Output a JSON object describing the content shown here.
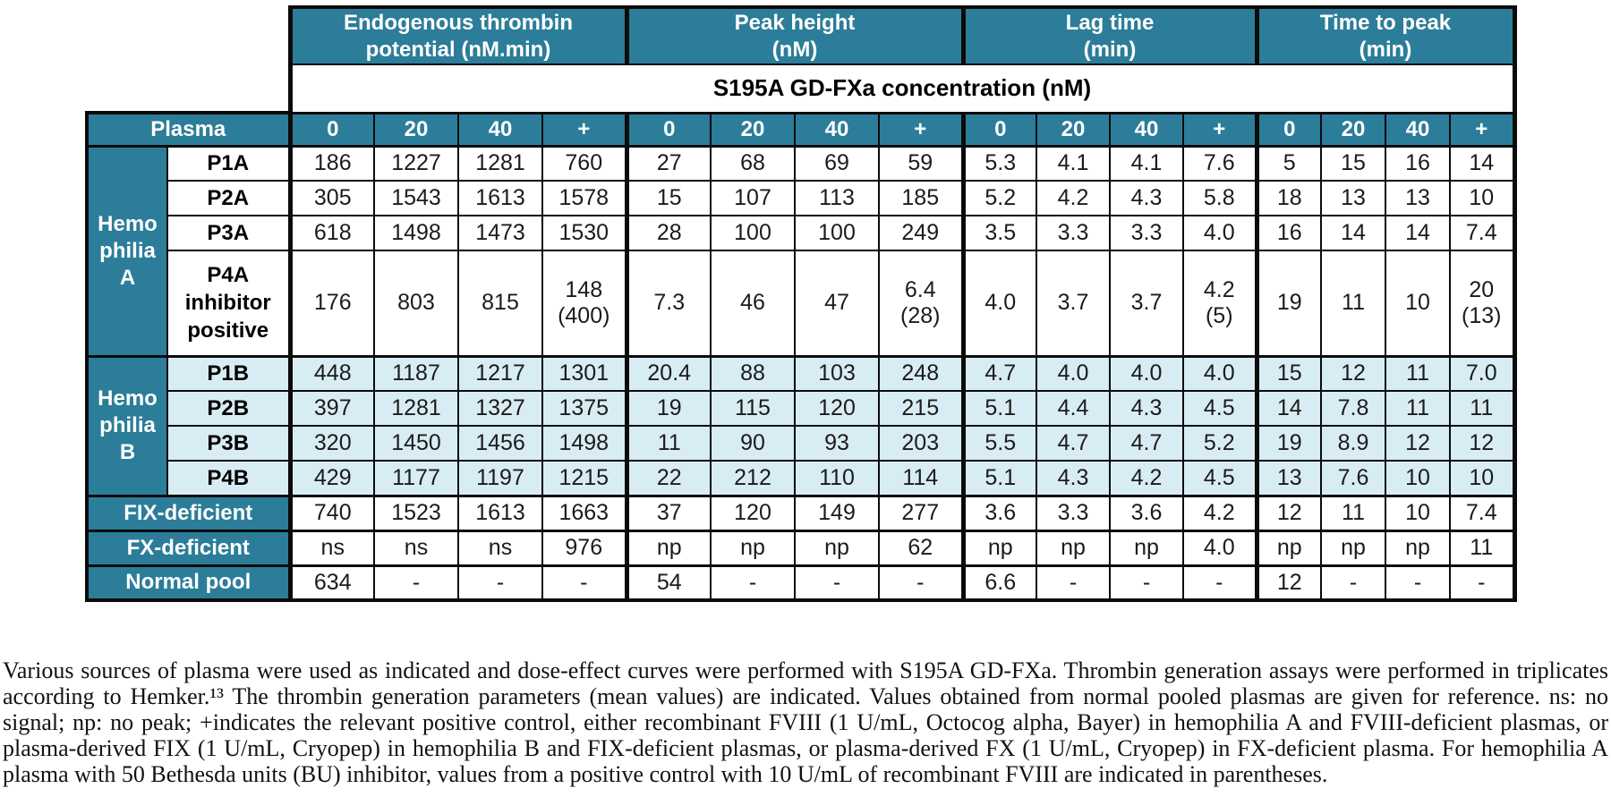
{
  "colors": {
    "header_teal": "#2c7d99",
    "row_light_blue": "#d8ecf4",
    "border_black": "#0b0b0b",
    "header_text": "#ffffff",
    "data_text": "#1b1b1b"
  },
  "table": {
    "column_groups": [
      {
        "label": "Endogenous thrombin\npotential (nM.min)"
      },
      {
        "label": "Peak height\n(nM)"
      },
      {
        "label": "Lag time\n(min)"
      },
      {
        "label": "Time to peak\n(min)"
      }
    ],
    "concentration_header": "S195A GD-FXa concentration (nM)",
    "plasma_header": "Plasma",
    "dose_labels": [
      "0",
      "20",
      "40",
      "+"
    ],
    "row_groups": [
      {
        "key": "hemA",
        "label": "Hemo\nphilia\nA",
        "rows": 4
      },
      {
        "key": "hemB",
        "label": "Hemo\nphilia\nB",
        "rows": 4
      }
    ],
    "rows": [
      {
        "section": "hemA",
        "label": "P1A",
        "values": [
          "186",
          "1227",
          "1281",
          "760",
          "27",
          "68",
          "69",
          "59",
          "5.3",
          "4.1",
          "4.1",
          "7.6",
          "5",
          "15",
          "16",
          "14"
        ]
      },
      {
        "section": "hemA",
        "label": "P2A",
        "values": [
          "305",
          "1543",
          "1613",
          "1578",
          "15",
          "107",
          "113",
          "185",
          "5.2",
          "4.2",
          "4.3",
          "5.8",
          "18",
          "13",
          "13",
          "10"
        ]
      },
      {
        "section": "hemA",
        "label": "P3A",
        "values": [
          "618",
          "1498",
          "1473",
          "1530",
          "28",
          "100",
          "100",
          "249",
          "3.5",
          "3.3",
          "3.3",
          "4.0",
          "16",
          "14",
          "14",
          "7.4"
        ]
      },
      {
        "section": "hemA",
        "label": "P4A\ninhibitor\npositive",
        "tall": true,
        "values": [
          "176",
          "803",
          "815",
          "148\n(400)",
          "7.3",
          "46",
          "47",
          "6.4\n(28)",
          "4.0",
          "3.7",
          "3.7",
          "4.2\n(5)",
          "19",
          "11",
          "10",
          "20\n(13)"
        ]
      },
      {
        "section": "hemB",
        "label": "P1B",
        "values": [
          "448",
          "1187",
          "1217",
          "1301",
          "20.4",
          "88",
          "103",
          "248",
          "4.7",
          "4.0",
          "4.0",
          "4.0",
          "15",
          "12",
          "11",
          "7.0"
        ]
      },
      {
        "section": "hemB",
        "label": "P2B",
        "values": [
          "397",
          "1281",
          "1327",
          "1375",
          "19",
          "115",
          "120",
          "215",
          "5.1",
          "4.4",
          "4.3",
          "4.5",
          "14",
          "7.8",
          "11",
          "11"
        ]
      },
      {
        "section": "hemB",
        "label": "P3B",
        "values": [
          "320",
          "1450",
          "1456",
          "1498",
          "11",
          "90",
          "93",
          "203",
          "5.5",
          "4.7",
          "4.7",
          "5.2",
          "19",
          "8.9",
          "12",
          "12"
        ]
      },
      {
        "section": "hemB",
        "label": "P4B",
        "values": [
          "429",
          "1177",
          "1197",
          "1215",
          "22",
          "212",
          "110",
          "114",
          "5.1",
          "4.3",
          "4.2",
          "4.5",
          "13",
          "7.6",
          "10",
          "10"
        ]
      },
      {
        "section": "solo",
        "label": "FIX-deficient",
        "values": [
          "740",
          "1523",
          "1613",
          "1663",
          "37",
          "120",
          "149",
          "277",
          "3.6",
          "3.3",
          "3.6",
          "4.2",
          "12",
          "11",
          "10",
          "7.4"
        ]
      },
      {
        "section": "solo",
        "label": "FX-deficient",
        "values": [
          "ns",
          "ns",
          "ns",
          "976",
          "np",
          "np",
          "np",
          "62",
          "np",
          "np",
          "np",
          "4.0",
          "np",
          "np",
          "np",
          "11"
        ]
      },
      {
        "section": "solo",
        "label": "Normal pool",
        "values": [
          "634",
          "-",
          "-",
          "-",
          "54",
          "-",
          "-",
          "-",
          "6.6",
          "-",
          "-",
          "-",
          "12",
          "-",
          "-",
          "-"
        ]
      }
    ]
  },
  "caption": {
    "text": "Various sources of plasma were used as indicated and dose-effect curves were performed with S195A GD-FXa. Thrombin generation assays were performed in triplicates according to Hemker.¹³ The thrombin generation parameters (mean values) are indicated. Values obtained from normal pooled plasmas are given for reference. ns: no signal; np: no peak; +indicates the relevant positive control, either recombinant FVIII (1 U/mL, Octocog alpha, Bayer) in hemophilia A and FVIII-deficient plasmas, or plasma-derived FIX (1 U/mL, Cryopep) in hemophilia B and FIX-deficient plasmas, or plasma-derived FX (1 U/mL, Cryopep) in FX-deficient plasma. For hemophilia A plasma with 50 Bethesda units (BU) inhibitor, values from a positive control with 10 U/mL of recombinant FVIII are indicated in parentheses."
  }
}
